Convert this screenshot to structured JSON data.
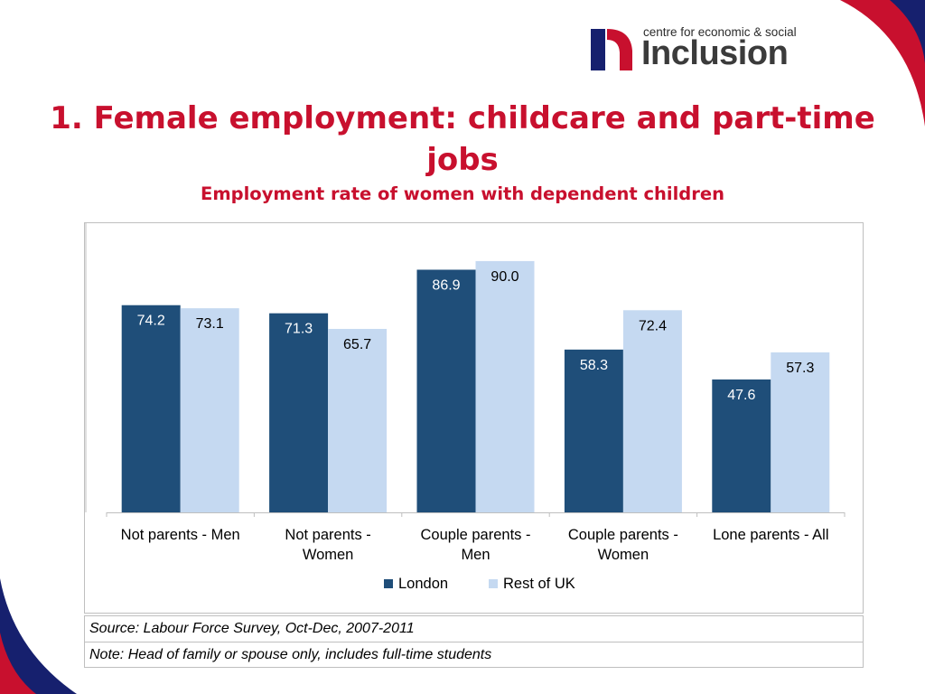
{
  "logo": {
    "tagline": "centre for economic & social",
    "name": "Inclusion"
  },
  "slide": {
    "title": "1. Female employment: childcare and part-time jobs",
    "subtitle": "Employment rate of women with dependent children"
  },
  "colors": {
    "title_red": "#c8102e",
    "london": "#1f4e79",
    "rest_of_uk": "#c5d9f1",
    "decor_navy": "#16206e",
    "decor_red": "#c8102e"
  },
  "chart_data": {
    "type": "bar",
    "title": "",
    "xlabel": "",
    "ylabel": "",
    "ylim": [
      0,
      100
    ],
    "grid": false,
    "legend_position": "bottom",
    "categories": [
      "Not parents - Men",
      "Not parents - Women",
      "Couple parents - Men",
      "Couple parents - Women",
      "Lone parents - All"
    ],
    "category_lines": [
      [
        "Not parents -  Men"
      ],
      [
        "Not parents -",
        "Women"
      ],
      [
        "Couple parents -",
        "Men"
      ],
      [
        "Couple parents -",
        "Women"
      ],
      [
        "Lone parents -  All"
      ]
    ],
    "series": [
      {
        "name": "London",
        "values": [
          74.2,
          71.3,
          86.9,
          58.3,
          47.6
        ],
        "labels": [
          "74.2",
          "71.3",
          "86.9",
          "58.3",
          "47.6"
        ]
      },
      {
        "name": "Rest of UK",
        "values": [
          73.1,
          65.7,
          90.0,
          72.4,
          57.3
        ],
        "labels": [
          "73.1",
          "65.7",
          "90.0",
          "72.4",
          "57.3"
        ]
      }
    ]
  },
  "notes": {
    "source": "Source: Labour Force Survey, Oct-Dec, 2007-2011",
    "note": "Note: Head of family or spouse only, includes full-time students"
  }
}
